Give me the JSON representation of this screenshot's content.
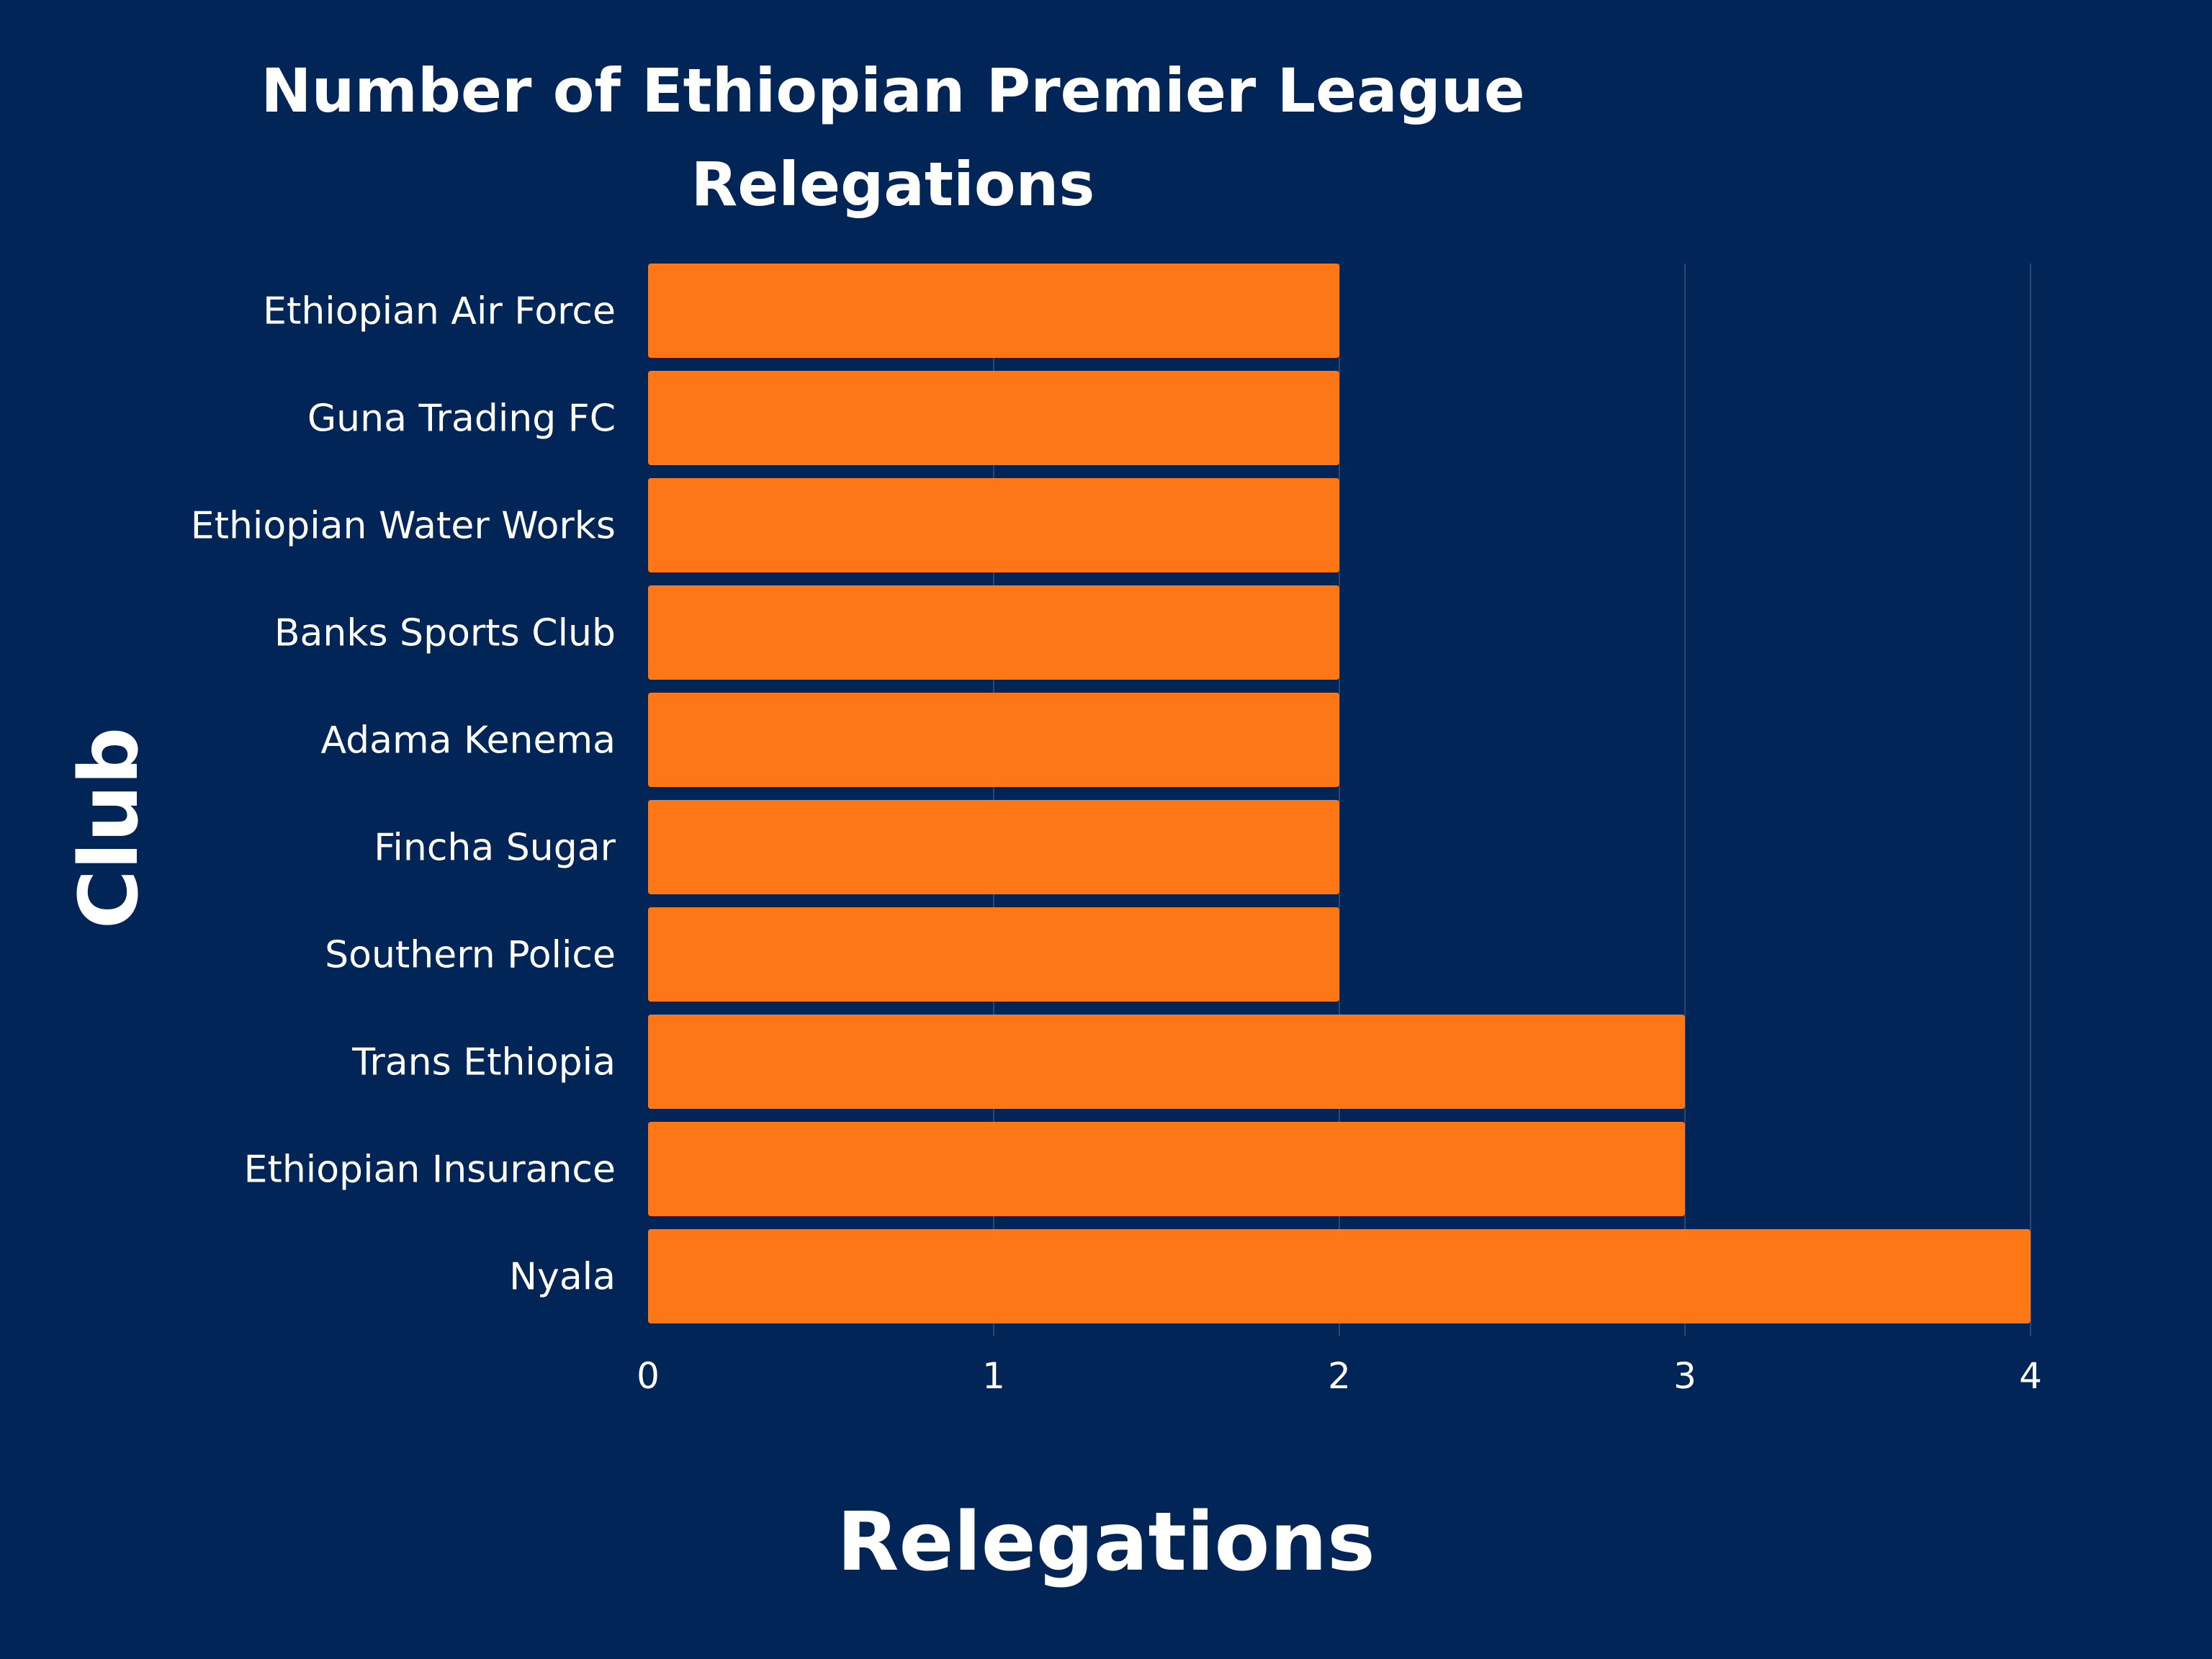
{
  "chart_data": {
    "type": "bar",
    "orientation": "horizontal",
    "title": "Number of Ethiopian Premier League Relegations",
    "title_lines": [
      "Number of Ethiopian Premier League",
      "Relegations"
    ],
    "xlabel": "Relegations",
    "ylabel": "Club",
    "categories": [
      "Ethiopian Air Force",
      "Guna Trading FC",
      "Ethiopian Water Works",
      "Banks Sports Club",
      "Adama Kenema",
      "Fincha Sugar",
      "Southern Police",
      "Trans Ethiopia",
      "Ethiopian Insurance",
      "Nyala"
    ],
    "values": [
      2,
      2,
      2,
      2,
      2,
      2,
      2,
      3,
      3,
      4
    ],
    "xlim": [
      0,
      4
    ],
    "xticks": [
      "0",
      "1",
      "2",
      "3",
      "4"
    ],
    "grid": true,
    "legend": "none",
    "colors": {
      "background": "#022558",
      "bar": "#fd7717",
      "text": "#ffffff",
      "grid": "#2c4770"
    }
  }
}
